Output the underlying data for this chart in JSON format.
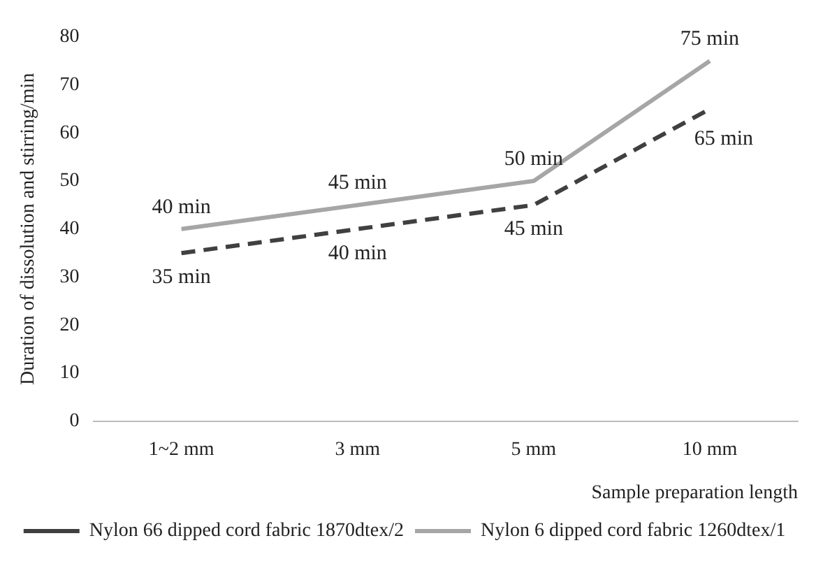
{
  "chart_data": {
    "type": "line",
    "xlabel": "Sample preparation length",
    "ylabel": "Duration of dissolution and stirring/min",
    "categories": [
      "1~2 mm",
      "3 mm",
      "5 mm",
      "10 mm"
    ],
    "series": [
      {
        "name": "Nylon 66 dipped cord fabric 1870dtex/2",
        "color": "#404040",
        "line_style": "dashed",
        "values": [
          35,
          40,
          45,
          65
        ],
        "value_labels": [
          "35 min",
          "40 min",
          "45 min",
          "65 min"
        ]
      },
      {
        "name": "Nylon 6 dipped cord fabric 1260dtex/1",
        "color": "#a6a6a6",
        "line_style": "solid",
        "values": [
          40,
          45,
          50,
          75
        ],
        "value_labels": [
          "40 min",
          "45 min",
          "50 min",
          "75 min"
        ]
      }
    ],
    "ylim": [
      0,
      80
    ],
    "yticks": [
      0,
      10,
      20,
      30,
      40,
      50,
      60,
      70,
      80
    ],
    "grid": false,
    "legend": "bottom",
    "marker": "none"
  }
}
